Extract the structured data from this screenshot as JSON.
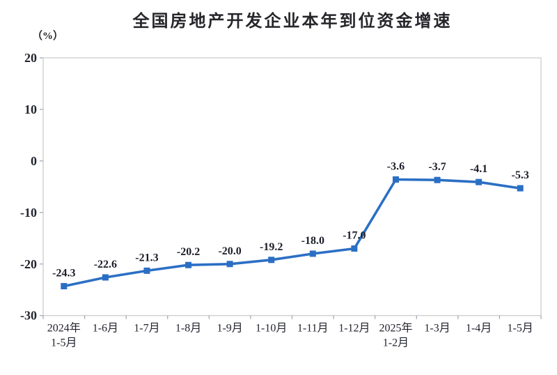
{
  "chart_data": {
    "type": "line",
    "title": "全国房地产开发企业本年到位资金增速",
    "unit_label": "（%）",
    "categories": [
      [
        "2024年",
        "1-5月"
      ],
      [
        "1-6月"
      ],
      [
        "1-7月"
      ],
      [
        "1-8月"
      ],
      [
        "1-9月"
      ],
      [
        "1-10月"
      ],
      [
        "1-11月"
      ],
      [
        "1-12月"
      ],
      [
        "2025年",
        "1-2月"
      ],
      [
        "1-3月"
      ],
      [
        "1-4月"
      ],
      [
        "1-5月"
      ]
    ],
    "values": [
      -24.3,
      -22.6,
      -21.3,
      -20.2,
      -20.0,
      -19.2,
      -18.0,
      -17.0,
      -3.6,
      -3.7,
      -4.1,
      -5.3
    ],
    "data_labels": [
      "-24.3",
      "-22.6",
      "-21.3",
      "-20.2",
      "-20.0",
      "-19.2",
      "-18.0",
      "-17.0",
      "-3.6",
      "-3.7",
      "-4.1",
      "-5.3"
    ],
    "xlabel": "",
    "ylabel": "（%）",
    "ylim": [
      -30,
      20
    ],
    "yticks": [
      20,
      10,
      0,
      -10,
      -20,
      -30
    ],
    "grid": false,
    "legend": "none",
    "colors": {
      "line": "#2b6fc4",
      "marker": "#2b6fc4",
      "text": "#22252e",
      "axis_border": "#c9c9c9",
      "tick": "#a0a4b0",
      "background": "#ffffff"
    }
  }
}
